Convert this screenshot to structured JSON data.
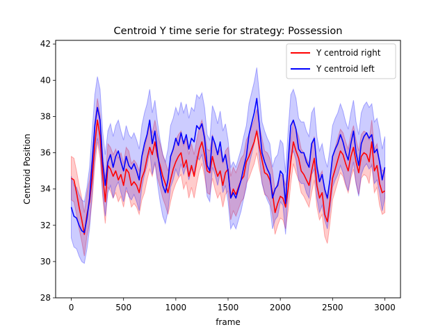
{
  "chart_data": {
    "type": "line",
    "title": "Centroid Y time serie for strategy: Possession",
    "xlabel": "frame",
    "ylabel": "Centroid Position",
    "xlim": [
      -150,
      3150
    ],
    "ylim": [
      28,
      42.2
    ],
    "xticks": [
      0,
      500,
      1000,
      1500,
      2000,
      2500,
      3000
    ],
    "yticks": [
      28,
      30,
      32,
      34,
      36,
      38,
      40,
      42
    ],
    "legend": "top-right",
    "grid": false,
    "series": [
      {
        "name": "Y centroid right",
        "color": "#ff0000",
        "band_width": 1.2,
        "x": [
          0,
          25,
          50,
          75,
          100,
          125,
          150,
          175,
          200,
          225,
          250,
          275,
          300,
          325,
          350,
          375,
          400,
          425,
          450,
          475,
          500,
          525,
          550,
          575,
          600,
          625,
          650,
          675,
          700,
          725,
          750,
          775,
          800,
          825,
          850,
          875,
          900,
          925,
          950,
          975,
          1000,
          1025,
          1050,
          1075,
          1100,
          1125,
          1150,
          1175,
          1200,
          1225,
          1250,
          1275,
          1300,
          1325,
          1350,
          1375,
          1400,
          1425,
          1450,
          1475,
          1500,
          1525,
          1550,
          1575,
          1600,
          1625,
          1650,
          1675,
          1700,
          1725,
          1750,
          1775,
          1800,
          1825,
          1850,
          1875,
          1900,
          1925,
          1950,
          1975,
          2000,
          2025,
          2050,
          2075,
          2100,
          2125,
          2150,
          2175,
          2200,
          2225,
          2250,
          2275,
          2300,
          2325,
          2350,
          2375,
          2400,
          2425,
          2450,
          2475,
          2500,
          2525,
          2550,
          2575,
          2600,
          2625,
          2650,
          2675,
          2700,
          2725,
          2750,
          2775,
          2800,
          2825,
          2850,
          2875,
          2900,
          2925,
          2950,
          2975,
          3000
        ],
        "values": [
          34.6,
          34.5,
          33.8,
          33.0,
          32.3,
          31.5,
          32.6,
          33.3,
          34.6,
          36.5,
          37.8,
          36.9,
          34.8,
          33.3,
          35.3,
          35.1,
          34.7,
          35.0,
          34.5,
          34.8,
          34.2,
          35.1,
          34.9,
          34.2,
          34.4,
          34.2,
          33.8,
          34.6,
          35.0,
          35.7,
          36.3,
          35.9,
          36.6,
          35.8,
          35.3,
          34.7,
          34.3,
          33.8,
          34.5,
          35.1,
          35.5,
          35.8,
          36.0,
          35.2,
          35.6,
          34.7,
          35.3,
          34.7,
          35.5,
          36.2,
          36.6,
          35.9,
          35.0,
          34.9,
          35.8,
          35.2,
          34.7,
          35.0,
          34.2,
          34.9,
          35.1,
          33.5,
          34.0,
          33.7,
          34.1,
          34.5,
          34.7,
          35.5,
          35.8,
          36.2,
          36.6,
          37.2,
          36.3,
          35.6,
          34.9,
          34.8,
          34.5,
          33.8,
          32.7,
          33.2,
          33.6,
          33.5,
          33.0,
          34.0,
          35.5,
          36.6,
          36.1,
          35.7,
          35.0,
          34.8,
          34.5,
          34.2,
          35.0,
          35.7,
          34.2,
          33.5,
          33.8,
          32.6,
          32.2,
          33.3,
          34.6,
          35.1,
          35.6,
          36.1,
          35.9,
          35.4,
          35.0,
          35.8,
          36.3,
          35.5,
          34.9,
          35.8,
          36.0,
          35.9,
          35.5,
          36.6,
          35.0,
          35.3,
          34.3,
          33.8,
          33.9
        ]
      },
      {
        "name": "Y centroid left",
        "color": "#0000ff",
        "band_width": 1.7,
        "x": [
          0,
          25,
          50,
          75,
          100,
          125,
          150,
          175,
          200,
          225,
          250,
          275,
          300,
          325,
          350,
          375,
          400,
          425,
          450,
          475,
          500,
          525,
          550,
          575,
          600,
          625,
          650,
          675,
          700,
          725,
          750,
          775,
          800,
          825,
          850,
          875,
          900,
          925,
          950,
          975,
          1000,
          1025,
          1050,
          1075,
          1100,
          1125,
          1150,
          1175,
          1200,
          1225,
          1250,
          1275,
          1300,
          1325,
          1350,
          1375,
          1400,
          1425,
          1450,
          1475,
          1500,
          1525,
          1550,
          1575,
          1600,
          1625,
          1650,
          1675,
          1700,
          1725,
          1750,
          1775,
          1800,
          1825,
          1850,
          1875,
          1900,
          1925,
          1950,
          1975,
          2000,
          2025,
          2050,
          2075,
          2100,
          2125,
          2150,
          2175,
          2200,
          2225,
          2250,
          2275,
          2300,
          2325,
          2350,
          2375,
          2400,
          2425,
          2450,
          2475,
          2500,
          2525,
          2550,
          2575,
          2600,
          2625,
          2650,
          2675,
          2700,
          2725,
          2750,
          2775,
          2800,
          2825,
          2850,
          2875,
          2900,
          2925,
          2950,
          2975,
          3000
        ],
        "values": [
          33.0,
          32.5,
          32.4,
          32.0,
          31.7,
          31.6,
          32.4,
          33.5,
          35.5,
          37.5,
          38.5,
          37.8,
          35.5,
          34.2,
          35.5,
          35.9,
          35.2,
          35.8,
          36.1,
          35.5,
          35.0,
          35.8,
          35.3,
          35.1,
          35.4,
          35.0,
          34.5,
          35.8,
          36.5,
          37.0,
          37.8,
          36.5,
          37.2,
          36.0,
          35.0,
          34.2,
          33.8,
          34.5,
          35.8,
          36.2,
          36.8,
          36.4,
          37.1,
          36.5,
          37.0,
          36.2,
          36.8,
          36.6,
          37.5,
          37.3,
          37.6,
          36.8,
          35.3,
          35.0,
          36.9,
          36.5,
          35.9,
          36.6,
          35.5,
          35.9,
          35.0,
          33.5,
          33.8,
          33.5,
          34.0,
          34.5,
          35.2,
          35.8,
          37.0,
          37.6,
          38.2,
          39.0,
          37.5,
          36.0,
          35.5,
          35.1,
          34.8,
          33.5,
          34.0,
          34.2,
          35.0,
          34.8,
          33.2,
          35.5,
          37.5,
          37.8,
          37.3,
          36.2,
          36.0,
          36.0,
          35.5,
          35.2,
          36.5,
          36.8,
          35.2,
          34.4,
          34.8,
          34.0,
          33.5,
          34.5,
          35.8,
          36.2,
          36.5,
          37.0,
          36.6,
          36.0,
          35.6,
          36.5,
          37.2,
          36.0,
          35.3,
          36.5,
          36.9,
          37.1,
          36.8,
          37.0,
          36.0,
          36.2,
          35.5,
          34.5,
          35.2
        ]
      }
    ]
  }
}
